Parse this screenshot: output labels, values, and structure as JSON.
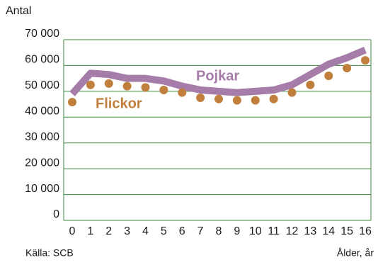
{
  "chart_data": {
    "type": "line",
    "y_label": "Antal",
    "x_label": "Ålder, år",
    "source": "Källa: SCB",
    "categories": [
      "0",
      "1",
      "2",
      "3",
      "4",
      "5",
      "6",
      "7",
      "8",
      "9",
      "10",
      "11",
      "12",
      "13",
      "14",
      "15",
      "16"
    ],
    "series": [
      {
        "name": "Pojkar",
        "color": "#a67ca8",
        "style": "line",
        "values": [
          49000,
          57000,
          56500,
          55000,
          55000,
          54000,
          52000,
          50500,
          50000,
          49500,
          50000,
          50500,
          52500,
          56500,
          60500,
          63000,
          66000
        ]
      },
      {
        "name": "Flickor",
        "color": "#c07f3c",
        "style": "dots",
        "values": [
          45800,
          52500,
          53000,
          52000,
          51500,
          50500,
          49500,
          47500,
          47000,
          46500,
          46500,
          47000,
          49500,
          52500,
          56000,
          59000,
          62000
        ]
      }
    ],
    "ylim": [
      0,
      70000
    ],
    "yticks": [
      {
        "value": 0,
        "label": "0"
      },
      {
        "value": 10000,
        "label": "10 000"
      },
      {
        "value": 20000,
        "label": "20 000"
      },
      {
        "value": 30000,
        "label": "30 000"
      },
      {
        "value": 40000,
        "label": "40 000"
      },
      {
        "value": 50000,
        "label": "50 000"
      },
      {
        "value": 60000,
        "label": "60 000"
      },
      {
        "value": 70000,
        "label": "70 000"
      }
    ],
    "grid": true,
    "grid_color": "#3f8a3b"
  }
}
